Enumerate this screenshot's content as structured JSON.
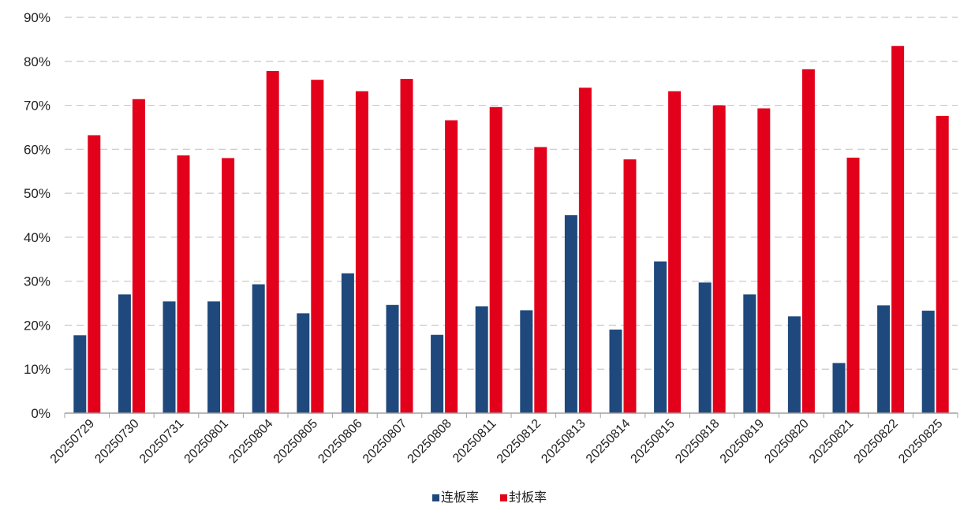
{
  "chart_data": {
    "type": "bar",
    "title": "",
    "xlabel": "",
    "ylabel": "",
    "ylim": [
      0,
      90
    ],
    "yticks": [
      0,
      10,
      20,
      30,
      40,
      50,
      60,
      70,
      80,
      90
    ],
    "ytick_format": "{v}%",
    "grid": "horizontal-dashed",
    "legend_position": "bottom-center",
    "categories": [
      "20250729",
      "20250730",
      "20250731",
      "20250801",
      "20250804",
      "20250805",
      "20250806",
      "20250807",
      "20250808",
      "20250811",
      "20250812",
      "20250813",
      "20250814",
      "20250815",
      "20250818",
      "20250819",
      "20250820",
      "20250821",
      "20250822",
      "20250825"
    ],
    "series": [
      {
        "name": "连板率",
        "color": "#1f497d",
        "values": [
          17.7,
          27.0,
          25.4,
          25.4,
          29.3,
          22.7,
          31.8,
          24.6,
          17.8,
          24.3,
          23.4,
          45.0,
          19.0,
          34.5,
          29.7,
          27.0,
          22.0,
          11.4,
          24.5,
          23.3
        ]
      },
      {
        "name": "封板率",
        "color": "#e3001b",
        "values": [
          63.2,
          71.4,
          58.6,
          58.0,
          77.8,
          75.8,
          73.2,
          76.0,
          66.6,
          69.6,
          60.5,
          74.0,
          57.7,
          73.2,
          70.0,
          69.3,
          78.2,
          58.1,
          83.5,
          67.6
        ]
      }
    ]
  }
}
